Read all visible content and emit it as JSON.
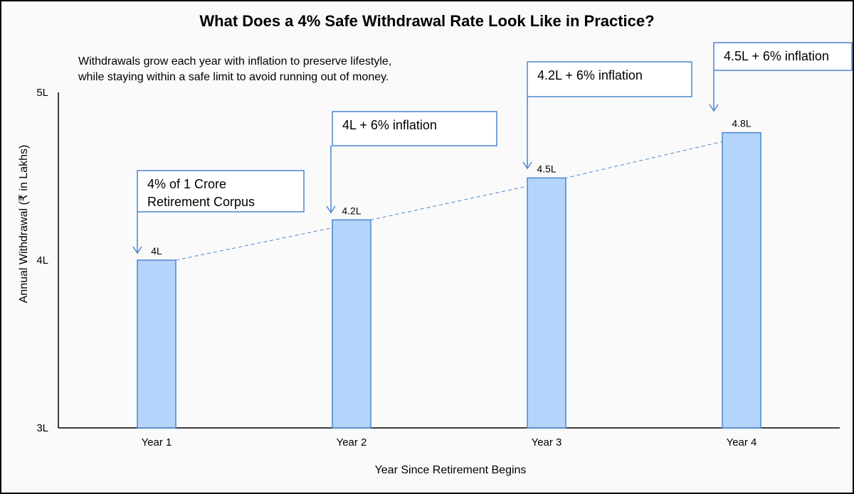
{
  "chart_data": {
    "type": "bar",
    "title": "What Does a 4% Safe Withdrawal Rate Look Like in Practice?",
    "subtitle": [
      "Withdrawals grow each year with inflation to preserve lifestyle,",
      "while staying within a safe limit to avoid running out of money."
    ],
    "categories": [
      "Year 1",
      "Year 2",
      "Year 3",
      "Year 4"
    ],
    "values": [
      4.0,
      4.24,
      4.49,
      4.76
    ],
    "data_labels": [
      "4L",
      "4.2L",
      "4.5L",
      "4.8L"
    ],
    "xlabel": "Year Since Retirement Begins",
    "ylabel": "Annual Withdrawal (₹ in Lakhs)",
    "ylim": [
      3,
      5
    ],
    "yticks": [
      {
        "value": 3,
        "label": "3L"
      },
      {
        "value": 4,
        "label": "4L"
      },
      {
        "value": 5,
        "label": "5L"
      }
    ],
    "trend_line": "dashed",
    "bar_color": "#b4d4fb",
    "bar_border_color": "#4a86d0",
    "accent_color": "#4a86d0",
    "grid": false,
    "annotations": [
      {
        "category": "Year 1",
        "lines": [
          "4% of 1 Crore",
          "Retirement Corpus"
        ]
      },
      {
        "category": "Year 2",
        "lines": [
          "4L + 6% inflation"
        ]
      },
      {
        "category": "Year 3",
        "lines": [
          "4.2L + 6% inflation"
        ]
      },
      {
        "category": "Year 4",
        "lines": [
          "4.5L + 6% inflation"
        ]
      }
    ]
  }
}
